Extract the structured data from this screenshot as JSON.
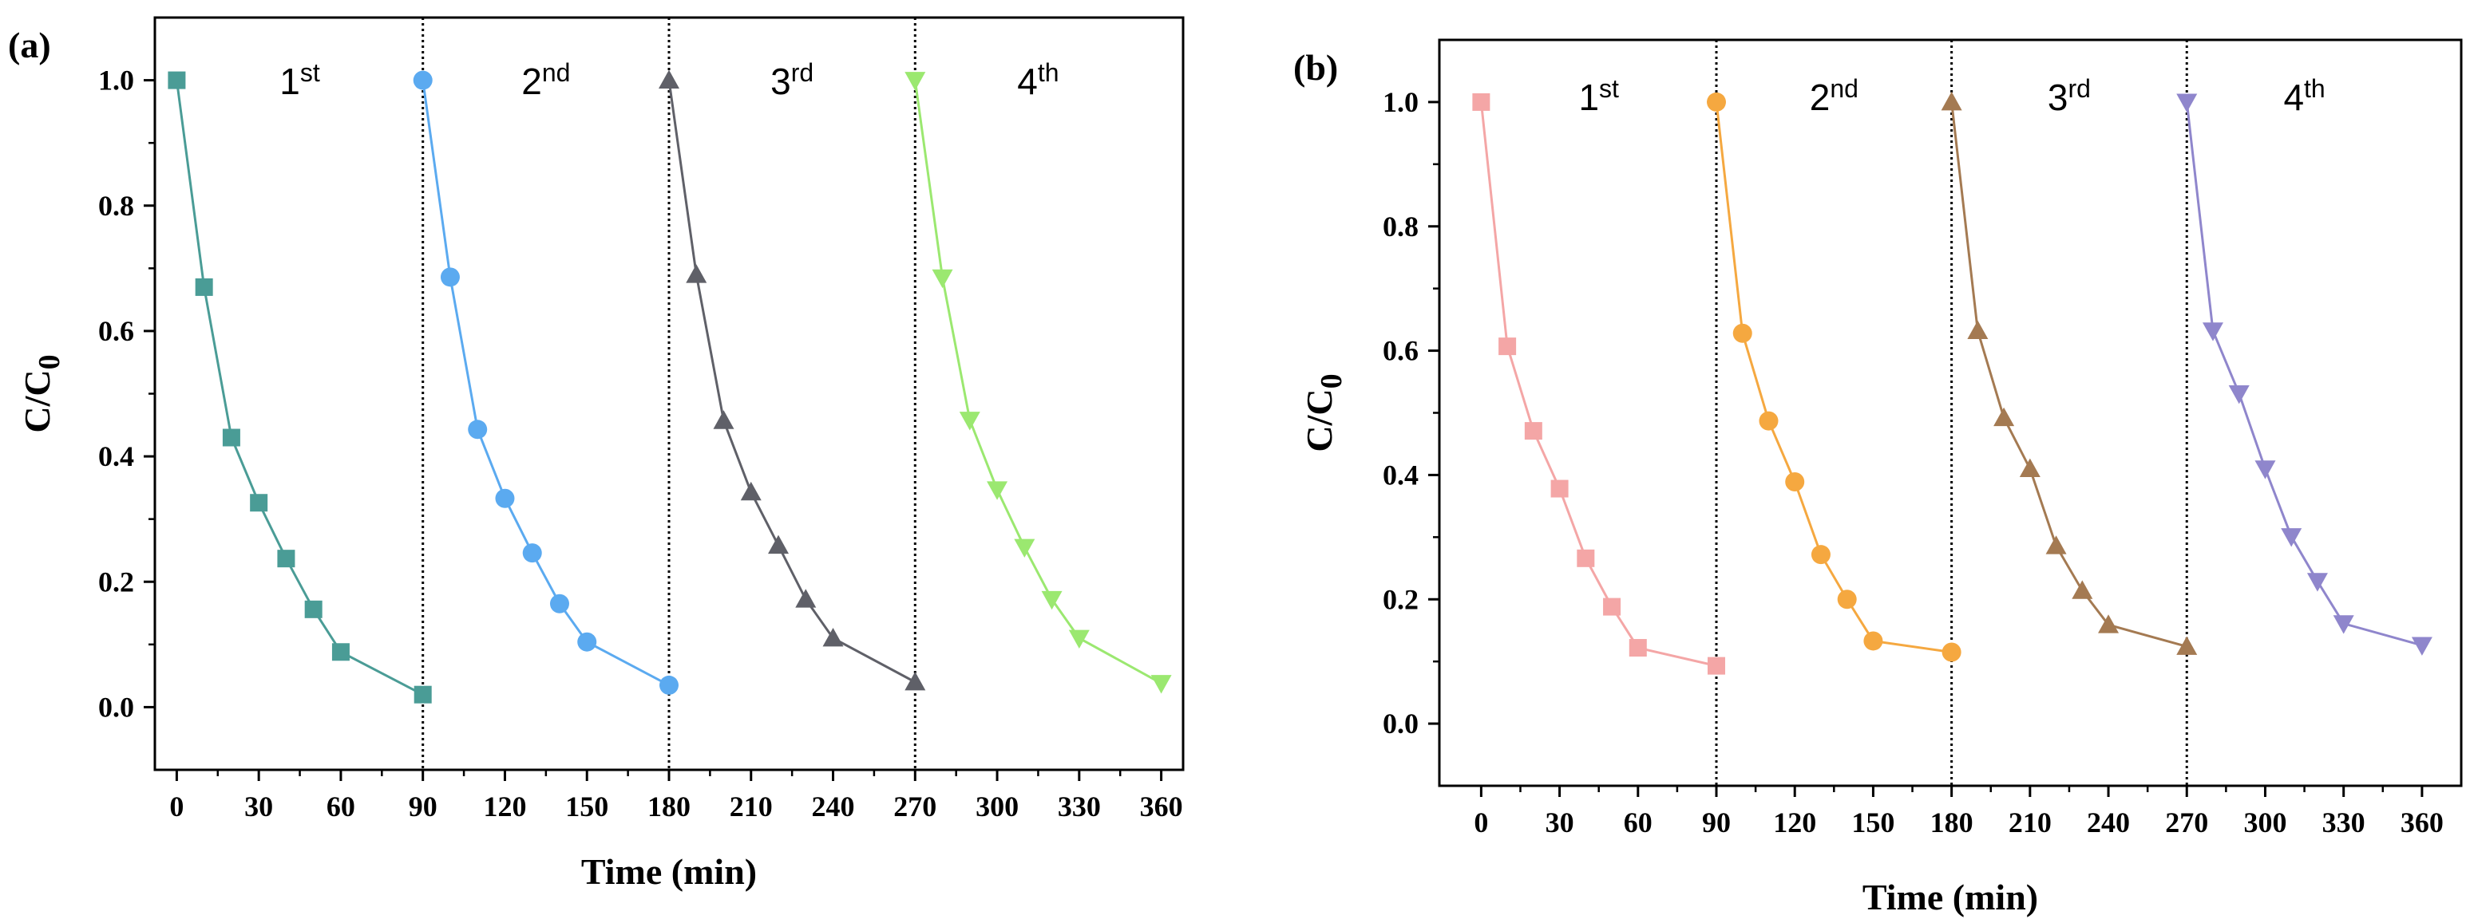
{
  "figure": {
    "domain": "Chart",
    "panels": 2
  },
  "chart_data": [
    {
      "panel_label": "(a)",
      "type": "line",
      "xlabel": "Time (min)",
      "ylabel_main": "C/C",
      "ylabel_sub": "0",
      "xlim": [
        -8,
        368
      ],
      "ylim": [
        -0.1,
        1.1
      ],
      "xticks": [
        0,
        30,
        60,
        90,
        120,
        150,
        180,
        210,
        240,
        270,
        300,
        330,
        360
      ],
      "xtick_labels": [
        "0",
        "30",
        "60",
        "90",
        "120",
        "150",
        "180",
        "210",
        "240",
        "270",
        "300",
        "330",
        "360"
      ],
      "yticks": [
        0.0,
        0.2,
        0.4,
        0.6,
        0.8,
        1.0
      ],
      "ytick_labels": [
        "0.0",
        "0.2",
        "0.4",
        "0.6",
        "0.8",
        "1.0"
      ],
      "dividers": [
        90,
        180,
        270
      ],
      "cycle_labels": [
        {
          "base": "1",
          "sup": "st",
          "x": 45
        },
        {
          "base": "2",
          "sup": "nd",
          "x": 135
        },
        {
          "base": "3",
          "sup": "rd",
          "x": 225
        },
        {
          "base": "4",
          "sup": "th",
          "x": 315
        }
      ],
      "series": [
        {
          "name": "1st",
          "marker": "square",
          "color": "#4a9c96",
          "x": [
            0,
            10,
            20,
            30,
            40,
            50,
            60,
            90
          ],
          "y": [
            1.0,
            0.67,
            0.43,
            0.326,
            0.237,
            0.156,
            0.088,
            0.02
          ]
        },
        {
          "name": "2nd",
          "marker": "circle",
          "color": "#5baaf0",
          "x": [
            90,
            100,
            110,
            120,
            130,
            140,
            150,
            180
          ],
          "y": [
            1.0,
            0.686,
            0.443,
            0.333,
            0.246,
            0.165,
            0.104,
            0.035
          ]
        },
        {
          "name": "3rd",
          "marker": "triangle-up",
          "color": "#5f6068",
          "x": [
            180,
            190,
            200,
            210,
            220,
            230,
            240,
            270
          ],
          "y": [
            1.0,
            0.69,
            0.457,
            0.343,
            0.258,
            0.172,
            0.11,
            0.04
          ]
        },
        {
          "name": "4th",
          "marker": "triangle-down",
          "color": "#9be870",
          "x": [
            270,
            280,
            290,
            300,
            310,
            320,
            330,
            360
          ],
          "y": [
            1.0,
            0.685,
            0.458,
            0.347,
            0.255,
            0.172,
            0.11,
            0.038
          ]
        }
      ]
    },
    {
      "panel_label": "(b)",
      "type": "line",
      "xlabel": "Time (min)",
      "ylabel_main": "C/C",
      "ylabel_sub": "0",
      "xlim": [
        -16,
        375
      ],
      "ylim": [
        -0.1,
        1.1
      ],
      "xticks": [
        0,
        30,
        60,
        90,
        120,
        150,
        180,
        210,
        240,
        270,
        300,
        330,
        360
      ],
      "xtick_labels": [
        "0",
        "30",
        "60",
        "90",
        "120",
        "150",
        "180",
        "210",
        "240",
        "270",
        "300",
        "330",
        "360"
      ],
      "yticks": [
        0.0,
        0.2,
        0.4,
        0.6,
        0.8,
        1.0
      ],
      "ytick_labels": [
        "0.0",
        "0.2",
        "0.4",
        "0.6",
        "0.8",
        "1.0"
      ],
      "dividers": [
        90,
        180,
        270
      ],
      "cycle_labels": [
        {
          "base": "1",
          "sup": "st",
          "x": 45
        },
        {
          "base": "2",
          "sup": "nd",
          "x": 135
        },
        {
          "base": "3",
          "sup": "rd",
          "x": 225
        },
        {
          "base": "4",
          "sup": "th",
          "x": 315
        }
      ],
      "series": [
        {
          "name": "1st",
          "marker": "square",
          "color": "#f4a6a6",
          "x": [
            0,
            10,
            20,
            30,
            40,
            50,
            60,
            90
          ],
          "y": [
            1.0,
            0.607,
            0.471,
            0.378,
            0.266,
            0.188,
            0.122,
            0.093
          ]
        },
        {
          "name": "2nd",
          "marker": "circle",
          "color": "#f5a840",
          "x": [
            90,
            100,
            110,
            120,
            130,
            140,
            150,
            180
          ],
          "y": [
            1.0,
            0.628,
            0.487,
            0.389,
            0.272,
            0.2,
            0.133,
            0.115
          ]
        },
        {
          "name": "3rd",
          "marker": "triangle-up",
          "color": "#a47a52",
          "x": [
            180,
            190,
            200,
            210,
            220,
            230,
            240,
            270
          ],
          "y": [
            1.0,
            0.632,
            0.492,
            0.41,
            0.286,
            0.214,
            0.159,
            0.124
          ]
        },
        {
          "name": "4th",
          "marker": "triangle-down",
          "color": "#8f86cc",
          "x": [
            270,
            280,
            290,
            300,
            310,
            320,
            330,
            360
          ],
          "y": [
            1.0,
            0.632,
            0.531,
            0.41,
            0.301,
            0.229,
            0.161,
            0.126
          ]
        }
      ]
    }
  ]
}
